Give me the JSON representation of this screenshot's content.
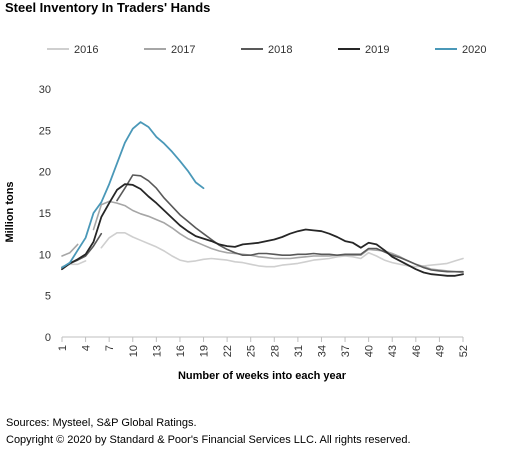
{
  "title": "Steel Inventory In Traders' Hands",
  "footer": {
    "sources": "Sources: Mysteel, S&P Global Ratings.",
    "copyright": "Copyright © 2020 by Standard & Poor's Financial Services LLC. All rights reserved."
  },
  "chart_data": {
    "type": "line",
    "xlabel": "Number of weeks into each year",
    "ylabel": "Million tons",
    "xlim": [
      1,
      52
    ],
    "ylim": [
      0,
      30
    ],
    "x_ticks": [
      1,
      4,
      7,
      10,
      13,
      16,
      19,
      22,
      25,
      28,
      31,
      34,
      37,
      40,
      43,
      46,
      49,
      52
    ],
    "y_ticks": [
      0,
      5,
      10,
      15,
      20,
      25,
      30
    ],
    "grid": false,
    "legend": "top",
    "series": [
      {
        "name": "2016",
        "color": "#cfcfcf",
        "width": 1.6,
        "segments": [
          [
            [
              1,
              8.5
            ],
            [
              2,
              8.8
            ],
            [
              3,
              8.8
            ],
            [
              4,
              9.2
            ]
          ],
          [
            [
              6,
              10.8
            ],
            [
              7,
              12.0
            ],
            [
              8,
              12.6
            ],
            [
              9,
              12.6
            ],
            [
              10,
              12.1
            ],
            [
              11,
              11.7
            ],
            [
              12,
              11.3
            ],
            [
              13,
              10.9
            ],
            [
              14,
              10.4
            ],
            [
              15,
              9.8
            ],
            [
              16,
              9.3
            ],
            [
              17,
              9.1
            ],
            [
              18,
              9.2
            ],
            [
              19,
              9.4
            ],
            [
              20,
              9.5
            ],
            [
              21,
              9.4
            ],
            [
              22,
              9.3
            ],
            [
              23,
              9.1
            ],
            [
              24,
              9.0
            ],
            [
              25,
              8.8
            ],
            [
              26,
              8.6
            ],
            [
              27,
              8.5
            ],
            [
              28,
              8.5
            ],
            [
              29,
              8.7
            ],
            [
              30,
              8.8
            ],
            [
              31,
              8.9
            ],
            [
              32,
              9.1
            ],
            [
              33,
              9.3
            ],
            [
              34,
              9.4
            ],
            [
              35,
              9.5
            ],
            [
              36,
              9.7
            ],
            [
              37,
              9.8
            ],
            [
              38,
              9.7
            ],
            [
              39,
              9.5
            ],
            [
              40,
              10.2
            ],
            [
              41,
              9.8
            ],
            [
              42,
              9.3
            ],
            [
              43,
              9.0
            ],
            [
              44,
              8.8
            ],
            [
              45,
              8.6
            ],
            [
              46,
              8.5
            ],
            [
              47,
              8.6
            ],
            [
              48,
              8.7
            ],
            [
              49,
              8.8
            ],
            [
              50,
              8.9
            ],
            [
              51,
              9.2
            ],
            [
              52,
              9.5
            ]
          ]
        ]
      },
      {
        "name": "2017",
        "color": "#a6a6a6",
        "width": 1.6,
        "segments": [
          [
            [
              1,
              9.8
            ],
            [
              2,
              10.2
            ],
            [
              3,
              11.2
            ]
          ],
          [
            [
              5,
              13.0
            ],
            [
              6,
              16.0
            ],
            [
              7,
              16.4
            ],
            [
              8,
              16.2
            ],
            [
              9,
              15.9
            ],
            [
              10,
              15.3
            ],
            [
              11,
              14.9
            ],
            [
              12,
              14.6
            ],
            [
              13,
              14.2
            ],
            [
              14,
              13.8
            ],
            [
              15,
              13.2
            ],
            [
              16,
              12.5
            ],
            [
              17,
              11.9
            ],
            [
              18,
              11.5
            ],
            [
              19,
              11.1
            ],
            [
              20,
              10.7
            ],
            [
              21,
              10.4
            ],
            [
              22,
              10.2
            ],
            [
              23,
              10.1
            ],
            [
              24,
              10.0
            ],
            [
              25,
              9.9
            ],
            [
              26,
              9.7
            ],
            [
              27,
              9.6
            ],
            [
              28,
              9.5
            ],
            [
              29,
              9.5
            ],
            [
              30,
              9.5
            ],
            [
              31,
              9.6
            ],
            [
              32,
              9.7
            ],
            [
              33,
              9.8
            ],
            [
              34,
              9.8
            ],
            [
              35,
              9.8
            ],
            [
              36,
              9.9
            ],
            [
              37,
              9.9
            ],
            [
              38,
              9.9
            ],
            [
              39,
              9.9
            ],
            [
              40,
              10.6
            ],
            [
              41,
              10.5
            ],
            [
              42,
              10.4
            ],
            [
              43,
              10.1
            ],
            [
              44,
              9.7
            ],
            [
              45,
              9.2
            ],
            [
              46,
              8.8
            ],
            [
              47,
              8.5
            ],
            [
              48,
              8.2
            ],
            [
              49,
              8.1
            ],
            [
              50,
              8.0
            ],
            [
              51,
              7.9
            ],
            [
              52,
              7.8
            ]
          ]
        ]
      },
      {
        "name": "2018",
        "color": "#595959",
        "width": 1.6,
        "segments": [
          [
            [
              1,
              8.4
            ],
            [
              2,
              8.9
            ],
            [
              3,
              9.3
            ],
            [
              4,
              9.8
            ],
            [
              5,
              11.0
            ],
            [
              6,
              12.5
            ]
          ],
          [
            [
              8,
              16.5
            ],
            [
              9,
              18.0
            ],
            [
              10,
              19.6
            ],
            [
              11,
              19.5
            ],
            [
              12,
              18.9
            ],
            [
              13,
              18.0
            ],
            [
              14,
              16.8
            ],
            [
              15,
              15.8
            ],
            [
              16,
              14.8
            ],
            [
              17,
              14.0
            ],
            [
              18,
              13.2
            ],
            [
              19,
              12.5
            ],
            [
              20,
              11.8
            ],
            [
              21,
              11.1
            ],
            [
              22,
              10.6
            ],
            [
              23,
              10.2
            ],
            [
              24,
              9.9
            ],
            [
              25,
              9.9
            ],
            [
              26,
              10.1
            ],
            [
              27,
              10.1
            ],
            [
              28,
              10.0
            ],
            [
              29,
              9.9
            ],
            [
              30,
              9.9
            ],
            [
              31,
              10.0
            ],
            [
              32,
              10.0
            ],
            [
              33,
              10.1
            ],
            [
              34,
              10.0
            ],
            [
              35,
              10.0
            ],
            [
              36,
              9.9
            ],
            [
              37,
              10.0
            ],
            [
              38,
              10.0
            ],
            [
              39,
              10.0
            ],
            [
              40,
              10.7
            ],
            [
              41,
              10.7
            ],
            [
              42,
              10.3
            ],
            [
              43,
              9.9
            ],
            [
              44,
              9.6
            ],
            [
              45,
              9.2
            ],
            [
              46,
              8.8
            ],
            [
              47,
              8.4
            ],
            [
              48,
              8.1
            ],
            [
              49,
              8.0
            ],
            [
              50,
              7.9
            ],
            [
              51,
              7.9
            ],
            [
              52,
              7.9
            ]
          ]
        ]
      },
      {
        "name": "2019",
        "color": "#262626",
        "width": 1.8,
        "segments": [
          [
            [
              1,
              8.2
            ],
            [
              2,
              8.9
            ],
            [
              3,
              9.4
            ],
            [
              4,
              10.0
            ],
            [
              5,
              11.5
            ],
            [
              6,
              14.5
            ],
            [
              7,
              16.2
            ],
            [
              8,
              17.8
            ],
            [
              9,
              18.5
            ],
            [
              10,
              18.4
            ],
            [
              11,
              17.9
            ],
            [
              12,
              17.0
            ],
            [
              13,
              16.2
            ],
            [
              14,
              15.3
            ],
            [
              15,
              14.4
            ],
            [
              16,
              13.5
            ],
            [
              17,
              12.8
            ],
            [
              18,
              12.2
            ],
            [
              19,
              11.9
            ],
            [
              20,
              11.6
            ],
            [
              21,
              11.2
            ],
            [
              22,
              11.0
            ],
            [
              23,
              10.9
            ],
            [
              24,
              11.2
            ],
            [
              25,
              11.3
            ],
            [
              26,
              11.4
            ],
            [
              27,
              11.6
            ],
            [
              28,
              11.8
            ],
            [
              29,
              12.1
            ],
            [
              30,
              12.5
            ],
            [
              31,
              12.8
            ],
            [
              32,
              13.0
            ],
            [
              33,
              12.9
            ],
            [
              34,
              12.8
            ],
            [
              35,
              12.5
            ],
            [
              36,
              12.1
            ],
            [
              37,
              11.6
            ],
            [
              38,
              11.4
            ],
            [
              39,
              10.8
            ],
            [
              40,
              11.4
            ],
            [
              41,
              11.2
            ],
            [
              42,
              10.5
            ],
            [
              43,
              9.7
            ],
            [
              44,
              9.2
            ],
            [
              45,
              8.7
            ],
            [
              46,
              8.2
            ],
            [
              47,
              7.8
            ],
            [
              48,
              7.6
            ],
            [
              49,
              7.5
            ],
            [
              50,
              7.4
            ],
            [
              51,
              7.4
            ],
            [
              52,
              7.6
            ]
          ]
        ]
      },
      {
        "name": "2020",
        "color": "#4a98b8",
        "width": 1.8,
        "segments": [
          [
            [
              1,
              8.4
            ],
            [
              2,
              9.0
            ],
            [
              3,
              10.5
            ],
            [
              4,
              12.0
            ],
            [
              5,
              15.0
            ],
            [
              6,
              16.3
            ],
            [
              7,
              18.5
            ],
            [
              8,
              21.0
            ],
            [
              9,
              23.5
            ],
            [
              10,
              25.2
            ],
            [
              11,
              26.0
            ],
            [
              12,
              25.4
            ],
            [
              13,
              24.2
            ],
            [
              14,
              23.4
            ],
            [
              15,
              22.4
            ],
            [
              16,
              21.3
            ],
            [
              17,
              20.1
            ],
            [
              18,
              18.7
            ],
            [
              19,
              18.0
            ]
          ]
        ]
      }
    ]
  }
}
